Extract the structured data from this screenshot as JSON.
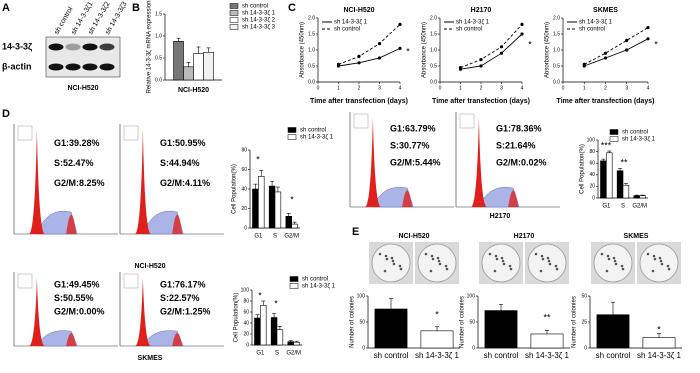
{
  "panel_labels": [
    "A",
    "B",
    "C",
    "D",
    "E"
  ],
  "blot": {
    "lanes": [
      "sh control",
      "sh 14-3-3ζ1",
      "sh 14-3-3ζ2",
      "sh 14-3-3ζ3"
    ],
    "rows": [
      "14-3-3ζ",
      "β-actin"
    ],
    "caption": "NCI-H520"
  },
  "flow": {
    "panels": [
      {
        "stats": [
          "G1:39.28%",
          "S:52.47%",
          "G2/M:8.25%"
        ]
      },
      {
        "stats": [
          "G1:50.95%",
          "S:44.94%",
          "G2/M:4.11%"
        ]
      },
      {
        "stats": [
          "G1:63.79%",
          "S:30.77%",
          "G2/M:5.44%"
        ]
      },
      {
        "stats": [
          "G1:78.36%",
          "S:21.64%",
          "G2/M:0.02%"
        ]
      },
      {
        "stats": [
          "G1:49.45%",
          "S:50.55%",
          "G2/M:0.00%"
        ]
      },
      {
        "stats": [
          "G1:76.17%",
          "S:22.57%",
          "G2/M:1.25%"
        ]
      }
    ],
    "captions": [
      "NCI-H520",
      "H2170",
      "SKMES"
    ]
  },
  "chart_data": [
    {
      "type": "bar",
      "ylabel": "Relative 14-3-3ζ mRNA expression",
      "xlabel": "NCI-H520",
      "categories": [
        null
      ],
      "legend": true,
      "ylim": [
        0,
        1.5
      ],
      "yticks": [
        {
          "value": 0,
          "label": "0.0"
        },
        0.5,
        {
          "value": 1,
          "label": "1.0"
        },
        1.5
      ],
      "series": [
        {
          "name": "sh control",
          "color": "#777777",
          "values": [
            0.88
          ],
          "errors": [
            0.07
          ]
        },
        {
          "name": "sh 14-3-3ζ 1",
          "color": "#bbbbbb",
          "values": [
            0.3
          ],
          "errors": [
            0.1
          ]
        },
        {
          "name": "sh 14-3-3ζ 2",
          "color": "#ffffff",
          "values": [
            0.6
          ],
          "errors": [
            0.15
          ]
        },
        {
          "name": "sh 14-3-3ζ 3",
          "color": "#f2f2f2",
          "values": [
            0.63
          ],
          "errors": [
            0.1
          ]
        }
      ]
    },
    {
      "type": "line",
      "title": "NCI-H520",
      "xlabel": "Time after transfection (days)",
      "ylabel": "Absorbance (450nm)",
      "legend": true,
      "x": [
        1,
        2,
        3,
        4
      ],
      "xlim": [
        0,
        4
      ],
      "xticks": [
        0,
        1,
        2,
        3,
        4
      ],
      "ylim": [
        0,
        2
      ],
      "yticks": [
        {
          "value": 0,
          "label": "0.0"
        },
        0.5,
        {
          "value": 1,
          "label": "1.0"
        },
        1.5,
        {
          "value": 2,
          "label": "2.0"
        }
      ],
      "series": [
        {
          "name": "sh 14-3-3ζ 1",
          "color": "#000000",
          "dash": false,
          "values": [
            0.5,
            0.6,
            0.75,
            1.05
          ]
        },
        {
          "name": "sh control",
          "color": "#000000",
          "dash": true,
          "values": [
            0.55,
            0.8,
            1.2,
            1.8
          ]
        }
      ],
      "annotations": [
        "*"
      ]
    },
    {
      "type": "line",
      "title": "H2170",
      "xlabel": "Time after transfection (days)",
      "ylabel": "Absorbance (450nm)",
      "legend": true,
      "x": [
        1,
        2,
        3,
        4
      ],
      "xlim": [
        0,
        4
      ],
      "xticks": [
        0,
        1,
        2,
        3,
        4
      ],
      "ylim": [
        0,
        2
      ],
      "yticks": [
        {
          "value": 0,
          "label": "0.0"
        },
        0.5,
        {
          "value": 1,
          "label": "1.0"
        },
        1.5,
        {
          "value": 2,
          "label": "2.0"
        }
      ],
      "series": [
        {
          "name": "sh 14-3-3ζ 1",
          "color": "#000000",
          "dash": false,
          "values": [
            0.4,
            0.5,
            0.9,
            1.5
          ]
        },
        {
          "name": "sh control",
          "color": "#000000",
          "dash": true,
          "values": [
            0.45,
            0.7,
            1.1,
            1.8
          ]
        }
      ],
      "annotations": [
        "*"
      ]
    },
    {
      "type": "line",
      "title": "SKMES",
      "xlabel": "Time after transfection (days)",
      "ylabel": "Absorbance (450nm)",
      "legend": true,
      "x": [
        1,
        2,
        3,
        4
      ],
      "xlim": [
        0,
        4
      ],
      "xticks": [
        0,
        1,
        2,
        3,
        4
      ],
      "ylim": [
        0,
        2
      ],
      "yticks": [
        {
          "value": 0,
          "label": "0.0"
        },
        0.5,
        {
          "value": 1,
          "label": "1.0"
        },
        1.5,
        {
          "value": 2,
          "label": "2.0"
        }
      ],
      "series": [
        {
          "name": "sh 14-3-3ζ 1",
          "color": "#000000",
          "dash": false,
          "values": [
            0.5,
            0.75,
            1.0,
            1.35
          ]
        },
        {
          "name": "sh control",
          "color": "#000000",
          "dash": true,
          "values": [
            0.55,
            0.9,
            1.3,
            1.7
          ]
        }
      ],
      "annotations": [
        "*"
      ]
    },
    {
      "type": "bar",
      "ylabel": "Cell Population(%)",
      "categories": [
        "G1",
        "S",
        "G2/M"
      ],
      "legend": true,
      "ylim": [
        0,
        80
      ],
      "yticks": [
        0,
        20,
        40,
        60,
        80
      ],
      "series": [
        {
          "name": "sh control",
          "color": "#000000",
          "values": [
            40,
            43,
            12
          ],
          "errors": [
            5,
            5,
            3
          ]
        },
        {
          "name": "sh 14-3-3ζ 1",
          "color": "#ffffff",
          "values": [
            53,
            37,
            4
          ],
          "errors": [
            6,
            5,
            2
          ]
        }
      ],
      "annotations": [
        "*",
        "*"
      ]
    },
    {
      "type": "bar",
      "ylabel": "Cell Population(%)",
      "categories": [
        "G1",
        "S",
        "G2/M"
      ],
      "legend": true,
      "ylim": [
        0,
        100
      ],
      "yticks": [
        0,
        20,
        40,
        60,
        80,
        100
      ],
      "series": [
        {
          "name": "sh control",
          "color": "#000000",
          "values": [
            64,
            47,
            4
          ],
          "errors": [
            3,
            4,
            1
          ]
        },
        {
          "name": "sh 14-3-3ζ 1",
          "color": "#ffffff",
          "values": [
            78,
            22,
            4
          ],
          "errors": [
            3,
            3,
            1
          ]
        }
      ],
      "annotations": [
        "***",
        "**"
      ]
    },
    {
      "type": "bar",
      "ylabel": "Cell Population(%)",
      "categories": [
        "G1",
        "S",
        "G2/M"
      ],
      "legend": true,
      "ylim": [
        0,
        100
      ],
      "yticks": [
        0,
        20,
        40,
        60,
        80,
        100
      ],
      "series": [
        {
          "name": "sh control",
          "color": "#000000",
          "values": [
            49,
            50,
            6
          ],
          "errors": [
            6,
            7,
            2
          ]
        },
        {
          "name": "sh 14-3-3ζ 1",
          "color": "#ffffff",
          "values": [
            72,
            28,
            5
          ],
          "errors": [
            8,
            6,
            2
          ]
        }
      ],
      "annotations": [
        "*",
        "*"
      ]
    },
    {
      "type": "bar",
      "title": "NCI-H520",
      "ylabel": "Number of colonies",
      "categories": [
        "sh control",
        "sh 14-3-3ζ 1"
      ],
      "legend": false,
      "ylim": [
        0,
        100
      ],
      "yticks": [
        0,
        50,
        100
      ],
      "series": [
        {
          "colors": [
            "#000000",
            "#ffffff"
          ],
          "values": [
            75,
            33
          ],
          "errors": [
            20,
            8
          ]
        }
      ],
      "annotations": [
        "*"
      ]
    },
    {
      "type": "bar",
      "title": "H2170",
      "ylabel": "Number of colonies",
      "categories": [
        "sh control",
        "sh 14-3-3ζ 1"
      ],
      "legend": false,
      "ylim": [
        0,
        100
      ],
      "yticks": [
        0,
        50,
        100
      ],
      "series": [
        {
          "colors": [
            "#000000",
            "#ffffff"
          ],
          "values": [
            72,
            27
          ],
          "errors": [
            12,
            7
          ]
        }
      ],
      "annotations": [
        "**"
      ]
    },
    {
      "type": "bar",
      "title": "SKMES",
      "ylabel": "Number of colonies",
      "categories": [
        "sh control",
        "sh 14-3-3ζ 1"
      ],
      "legend": false,
      "ylim": [
        0,
        50
      ],
      "yticks": [
        0,
        25,
        50
      ],
      "series": [
        {
          "colors": [
            "#000000",
            "#ffffff"
          ],
          "values": [
            32,
            10
          ],
          "errors": [
            12,
            4
          ]
        }
      ],
      "annotations": [
        "*"
      ]
    }
  ]
}
